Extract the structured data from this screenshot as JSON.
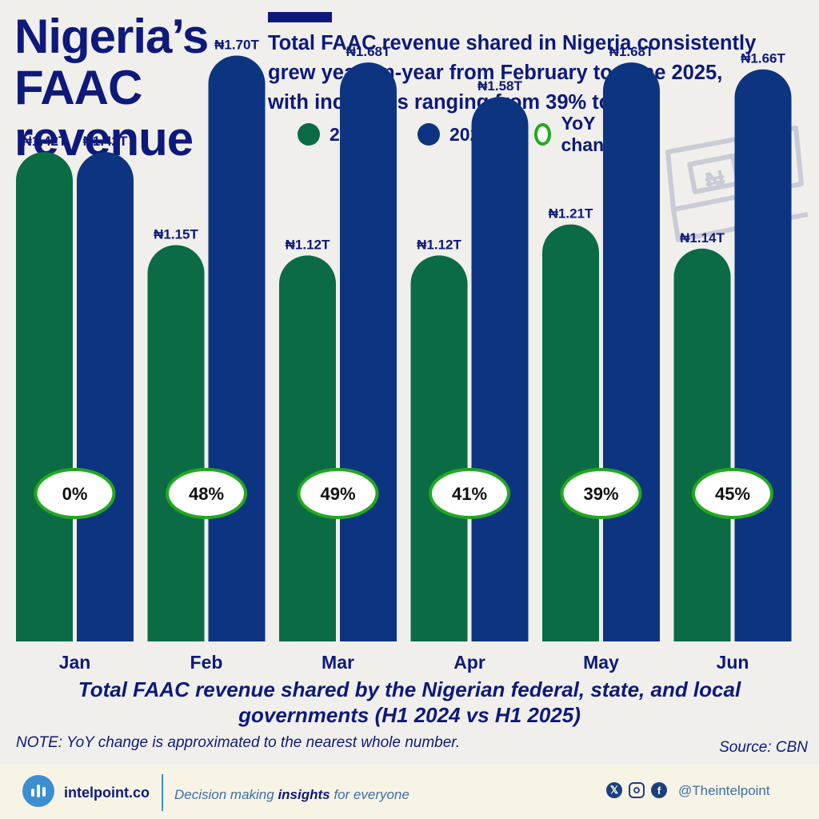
{
  "header": {
    "title_lines": [
      "Nigeria’s",
      "FAAC",
      "revenue"
    ],
    "subtitle_lines": [
      "Total FAAC revenue shared in Nigeria consistently",
      "grew year-on-year from February to June 2025,",
      "with increases ranging from 39% to 49%"
    ]
  },
  "legend": [
    {
      "label": "2024",
      "color": "#0a6b45",
      "style": "filled"
    },
    {
      "label": "2025",
      "color": "#0c3480",
      "style": "filled"
    },
    {
      "label": "YoY change",
      "color": "#22a81e",
      "style": "ring"
    }
  ],
  "chart_data": {
    "type": "bar",
    "categories": [
      "Jan",
      "Feb",
      "Mar",
      "Apr",
      "May",
      "Jun"
    ],
    "series": [
      {
        "name": "2024",
        "color": "#0a6b45",
        "values": [
          1.42,
          1.15,
          1.12,
          1.12,
          1.21,
          1.14
        ],
        "labels": [
          "₦1.42T",
          "₦1.15T",
          "₦1.12T",
          "₦1.12T",
          "₦1.21T",
          "₦1.14T"
        ]
      },
      {
        "name": "2025",
        "color": "#0c3480",
        "values": [
          1.42,
          1.7,
          1.68,
          1.58,
          1.68,
          1.66
        ],
        "labels": [
          "₦1.42T",
          "₦1.70T",
          "₦1.68T",
          "₦1.58T",
          "₦1.68T",
          "₦1.66T"
        ]
      }
    ],
    "yoy_change": [
      "0%",
      "48%",
      "49%",
      "41%",
      "39%",
      "45%"
    ],
    "ylim": [
      0,
      1.78
    ],
    "units": "₦ trillion",
    "grid": false
  },
  "caption_lines": [
    "Total FAAC revenue shared by the Nigerian federal, state, and local",
    "governments (H1 2024 vs H1 2025)"
  ],
  "note": "NOTE: YoY change is approximated to the nearest whole number.",
  "source": "Source: CBN",
  "footer": {
    "brand": "intelpoint.co",
    "tagline_pre": "Decision making ",
    "tagline_bold": "insights",
    "tagline_post": " for everyone",
    "social_icons": [
      "x-icon",
      "instagram-icon",
      "facebook-icon"
    ],
    "handle": "@Theintelpoint"
  }
}
